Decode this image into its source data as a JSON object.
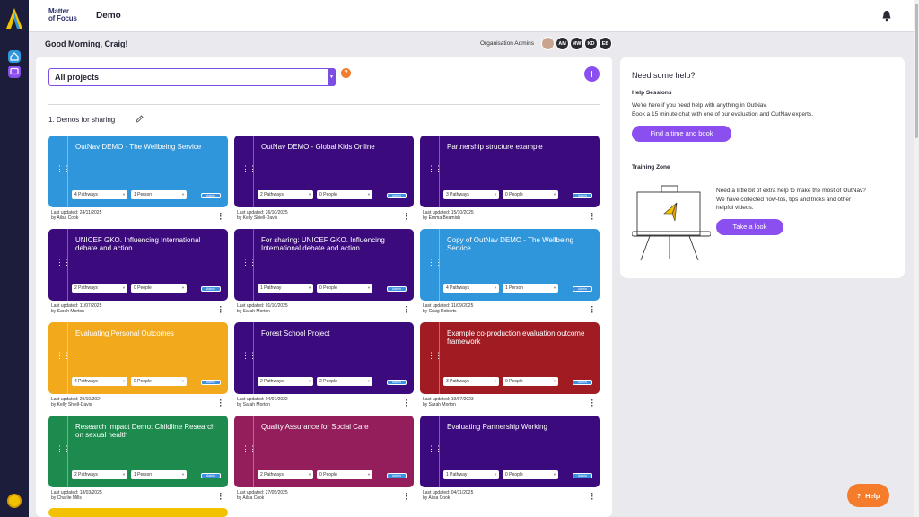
{
  "app": {
    "brand_line1": "Matter",
    "brand_line2": "of Focus",
    "title": "Demo"
  },
  "greeting": "Good Morning, Craig!",
  "org_admins": {
    "label": "Organisation Admins",
    "initials": [
      "AM",
      "MW",
      "KD",
      "EB"
    ]
  },
  "main": {
    "project_select": "All projects",
    "help_badge": "?",
    "add_label": "+",
    "section_title": "1. Demos for sharing"
  },
  "admin_tag": "Admin",
  "cards": [
    {
      "title": "OutNav DEMO - The Wellbeing Service",
      "color": "#2f96dc",
      "pathways": "4 Pathways",
      "people": "1 Person",
      "updated": "Last updated: 24/11/2025",
      "by": "by Ailsa Cook"
    },
    {
      "title": "OutNav DEMO - Global Kids Online",
      "color": "#3b0a7d",
      "pathways": "2 Pathways",
      "people": "0 People",
      "updated": "Last updated: 26/10/2025",
      "by": "by Kelly Shiell-Davis"
    },
    {
      "title": "Partnership structure example",
      "color": "#3b0a7d",
      "pathways": "3 Pathways",
      "people": "0 People",
      "updated": "Last updated: 15/10/2025",
      "by": "by Emma Beamish"
    },
    {
      "title": "UNICEF GKO. Influencing International debate and action",
      "color": "#3b0a7d",
      "pathways": "2 Pathways",
      "people": "0 People",
      "updated": "Last updated: 11/07/2025",
      "by": "by Sarah Morton"
    },
    {
      "title": "For sharing: UNICEF GKO. Influencing International debate and action",
      "color": "#3b0a7d",
      "pathways": "1 Pathway",
      "people": "0 People",
      "updated": "Last updated: 01/10/2025",
      "by": "by Sarah Morton"
    },
    {
      "title": "Copy of OutNav DEMO - The Wellbeing Service",
      "color": "#2f96dc",
      "pathways": "4 Pathways",
      "people": "1 Person",
      "updated": "Last updated: 11/09/2025",
      "by": "by Craig Roberts"
    },
    {
      "title": "Evaluating Personal Outcomes",
      "color": "#f2a91b",
      "pathways": "4 Pathways",
      "people": "0 People",
      "updated": "Last updated: 29/10/2024",
      "by": "by Kelly Shiell-Davis"
    },
    {
      "title": "Forest School Project",
      "color": "#3b0a7d",
      "pathways": "2 Pathways",
      "people": "2 People",
      "updated": "Last updated: 04/07/2022",
      "by": "by Sarah Morton"
    },
    {
      "title": "Example co-production evaluation outcome framework",
      "color": "#a01c22",
      "pathways": "3 Pathways",
      "people": "0 People",
      "updated": "Last updated: 19/07/2023",
      "by": "by Sarah Morton"
    },
    {
      "title": "Research Impact Demo: Childline Research on sexual health",
      "color": "#1e8b4e",
      "pathways": "2 Pathways",
      "people": "1 Person",
      "updated": "Last updated: 18/03/2025",
      "by": "by Charlie Mills"
    },
    {
      "title": "Quality Assurance for Social Care",
      "color": "#941d5c",
      "pathways": "2 Pathways",
      "people": "0 People",
      "updated": "Last updated: 27/05/2025",
      "by": "by Ailsa Cook"
    },
    {
      "title": "Evaluating Partnership Working",
      "color": "#3b0a7d",
      "pathways": "1 Pathway",
      "people": "0 People",
      "updated": "Last updated: 04/11/2025",
      "by": "by Ailsa Cook"
    }
  ],
  "partial_card_color": "#f2c200",
  "help_panel": {
    "title": "Need some help?",
    "sessions_title": "Help Sessions",
    "sessions_line1": "We're here if you need help with anything in OutNav.",
    "sessions_line2": "Book a 15 minute chat with one of our evaluation and OutNav experts.",
    "book_button": "Find a time and book",
    "training_title": "Training Zone",
    "training_line1": "Need a little bit of extra help to make the most of OutNav?",
    "training_line2": "We have collected how-tos, tips and tricks and other",
    "training_line3": "helpful videos.",
    "look_button": "Take a look"
  },
  "float_help": {
    "icon": "?",
    "label": "Help"
  },
  "icons": [
    "home-icon",
    "chat-icon",
    "bell-icon",
    "edit-icon",
    "drag-handle-icon",
    "kebab-menu-icon",
    "chevron-down-icon"
  ]
}
